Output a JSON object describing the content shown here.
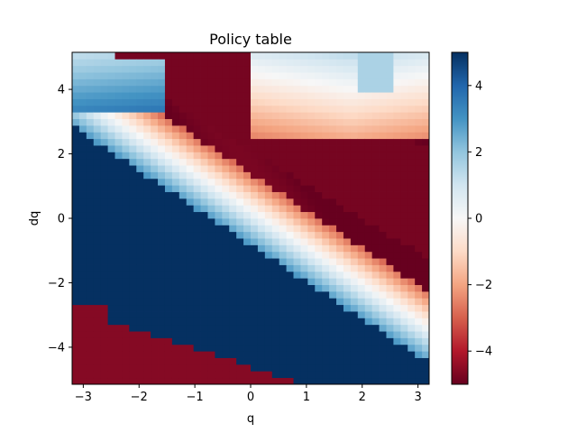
{
  "chart_data": {
    "type": "heatmap",
    "title": "Policy table",
    "xlabel": "q",
    "ylabel": "dq",
    "xlim": [
      -3.2,
      3.2
    ],
    "ylim": [
      -5.15,
      5.15
    ],
    "clim": [
      -5,
      5
    ],
    "colormap": "RdBu",
    "x_ticks": [
      -3,
      -2,
      -1,
      0,
      1,
      2,
      3
    ],
    "y_ticks": [
      -4,
      -2,
      0,
      2,
      4
    ],
    "colorbar_ticks": [
      -4,
      -2,
      0,
      2,
      4
    ],
    "grid": false,
    "grid_size": [
      50,
      50
    ],
    "description_of_values": "Control action u(q, dq) in [-5, 5]: negative (red) above a diagonal band running from upper-left to lower-right, positive (blue) below it, with light transition near the band; saturated regions at +5 (lower-left) and -5 (upper-right)."
  }
}
